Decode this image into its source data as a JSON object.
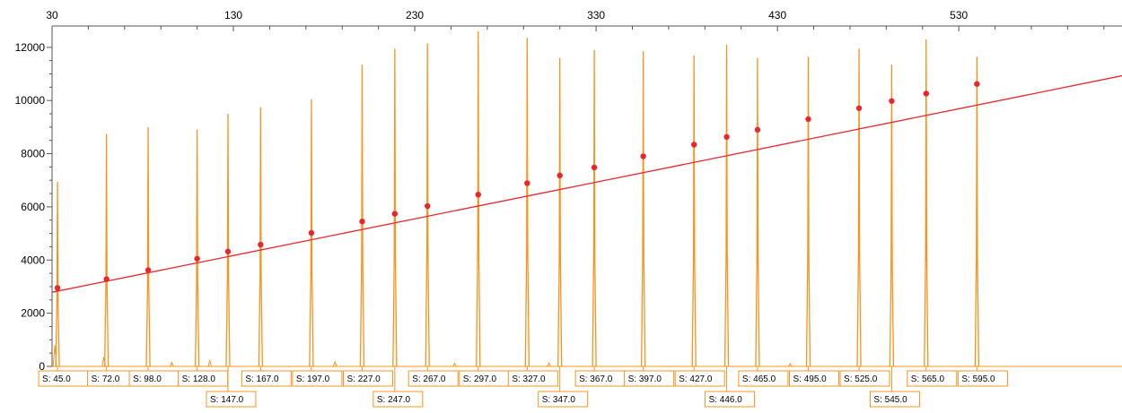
{
  "chart_data": {
    "type": "line",
    "title": "",
    "xlabel": "",
    "ylabel": "",
    "xlim": [
      30,
      620
    ],
    "ylim": [
      0,
      12600
    ],
    "x_ticks": [
      30,
      130,
      230,
      330,
      430,
      530
    ],
    "y_ticks": [
      0,
      2000,
      4000,
      6000,
      8000,
      10000,
      12000
    ],
    "grid": false,
    "legend": "none",
    "colors": {
      "trace": "#f7941d",
      "fit": "#e8262b",
      "label_border": "#f7941d",
      "axis": "#555555"
    },
    "peaks": [
      {
        "x": 33,
        "height": 6950,
        "size_label": "S: 45.0"
      },
      {
        "x": 60,
        "height": 8750,
        "size_label": "S: 72.0"
      },
      {
        "x": 83,
        "height": 9000,
        "size_label": "S: 98.0"
      },
      {
        "x": 110,
        "height": 8900,
        "size_label": "S: 128.0"
      },
      {
        "x": 127,
        "height": 9500,
        "size_label": "S: 147.0"
      },
      {
        "x": 145,
        "height": 9750,
        "size_label": "S: 167.0"
      },
      {
        "x": 173,
        "height": 10050,
        "size_label": "S: 197.0"
      },
      {
        "x": 201,
        "height": 11350,
        "size_label": "S: 227.0"
      },
      {
        "x": 219,
        "height": 11950,
        "size_label": "S: 247.0"
      },
      {
        "x": 237,
        "height": 12150,
        "size_label": "S: 267.0"
      },
      {
        "x": 265,
        "height": 12600,
        "size_label": "S: 297.0"
      },
      {
        "x": 292,
        "height": 12350,
        "size_label": "S: 327.0"
      },
      {
        "x": 310,
        "height": 11600,
        "size_label": "S: 347.0"
      },
      {
        "x": 329,
        "height": 11900,
        "size_label": "S: 367.0"
      },
      {
        "x": 356,
        "height": 11850,
        "size_label": "S: 397.0"
      },
      {
        "x": 384,
        "height": 11700,
        "size_label": "S: 427.0"
      },
      {
        "x": 402,
        "height": 12100,
        "size_label": "S: 446.0"
      },
      {
        "x": 419,
        "height": 11600,
        "size_label": "S: 465.0"
      },
      {
        "x": 447,
        "height": 11650,
        "size_label": "S: 495.0"
      },
      {
        "x": 475,
        "height": 11950,
        "size_label": "S: 525.0"
      },
      {
        "x": 493,
        "height": 11350,
        "size_label": "S: 545.0"
      },
      {
        "x": 512,
        "height": 12300,
        "size_label": "S: 565.0"
      },
      {
        "x": 540,
        "height": 11650,
        "size_label": "S: 595.0"
      }
    ],
    "minor_peaks": [
      {
        "x": 31.5,
        "height": 800
      },
      {
        "x": 58.5,
        "height": 350
      },
      {
        "x": 96,
        "height": 150
      },
      {
        "x": 117,
        "height": 220
      },
      {
        "x": 186,
        "height": 170
      },
      {
        "x": 252,
        "height": 120
      },
      {
        "x": 304,
        "height": 130
      },
      {
        "x": 437,
        "height": 110
      }
    ],
    "fit_points": [
      {
        "x": 33,
        "y": 2950
      },
      {
        "x": 60,
        "y": 3280
      },
      {
        "x": 83,
        "y": 3620
      },
      {
        "x": 110,
        "y": 4050
      },
      {
        "x": 127,
        "y": 4320
      },
      {
        "x": 145,
        "y": 4580
      },
      {
        "x": 173,
        "y": 5020
      },
      {
        "x": 201,
        "y": 5450
      },
      {
        "x": 219,
        "y": 5740
      },
      {
        "x": 237,
        "y": 6030
      },
      {
        "x": 265,
        "y": 6460
      },
      {
        "x": 292,
        "y": 6890
      },
      {
        "x": 310,
        "y": 7180
      },
      {
        "x": 329,
        "y": 7480
      },
      {
        "x": 356,
        "y": 7900
      },
      {
        "x": 384,
        "y": 8340
      },
      {
        "x": 402,
        "y": 8630
      },
      {
        "x": 419,
        "y": 8900
      },
      {
        "x": 447,
        "y": 9300
      },
      {
        "x": 475,
        "y": 9710
      },
      {
        "x": 493,
        "y": 9980
      },
      {
        "x": 512,
        "y": 10260
      },
      {
        "x": 540,
        "y": 10620
      }
    ],
    "fit_line": {
      "x": [
        30,
        620
      ],
      "y": [
        2790,
        10930
      ]
    }
  }
}
